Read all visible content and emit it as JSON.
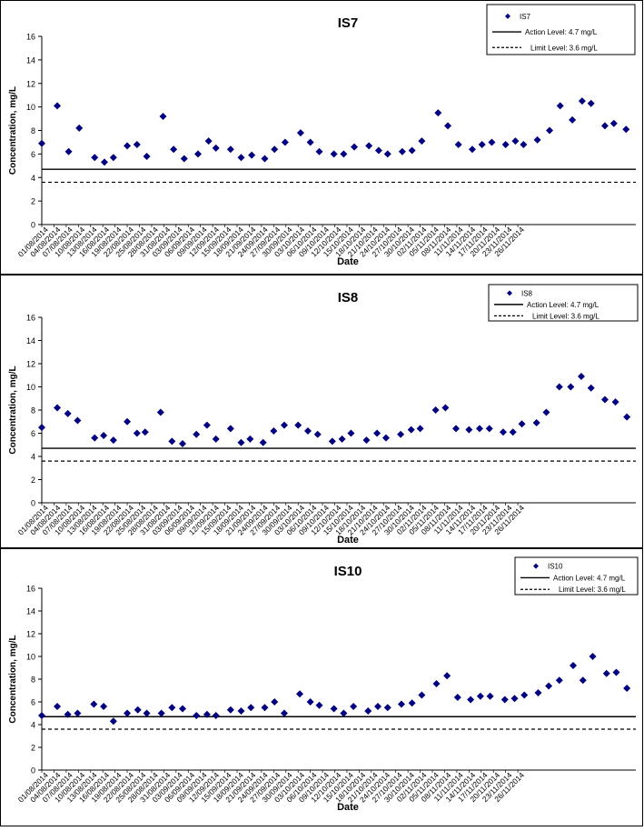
{
  "chart_data": [
    {
      "type": "scatter",
      "title": "IS7",
      "xlabel": "Date",
      "ylabel": "Concentration, mg/L",
      "ylim": [
        0,
        16
      ],
      "yticks": [
        0,
        2,
        4,
        6,
        8,
        10,
        12,
        14,
        16
      ],
      "x_tick_labels": [
        "01/08/2014",
        "04/08/2014",
        "07/08/2014",
        "10/08/2014",
        "13/08/2014",
        "16/08/2014",
        "19/08/2014",
        "22/08/2014",
        "25/08/2014",
        "28/08/2014",
        "31/08/2014",
        "03/09/2014",
        "06/09/2014",
        "09/09/2014",
        "12/09/2014",
        "15/09/2014",
        "18/09/2014",
        "21/09/2014",
        "24/09/2014",
        "27/09/2014",
        "30/09/2014",
        "03/10/2014",
        "06/10/2014",
        "09/10/2014",
        "12/10/2014",
        "15/10/2014",
        "18/10/2014",
        "21/10/2014",
        "24/10/2014",
        "27/10/2014",
        "30/10/2014",
        "02/11/2014",
        "05/11/2014",
        "08/11/2014",
        "11/11/2014",
        "14/11/2014",
        "17/11/2014",
        "20/11/2014",
        "23/11/2014",
        "26/11/2014"
      ],
      "legend_position": "top-right",
      "legend": {
        "series": "IS7",
        "action": "Action Level: 4.7 mg/L",
        "limit": "Limit Level: 3.6 mg/L"
      },
      "action_level": 4.7,
      "limit_level": 3.6,
      "series": [
        {
          "name": "IS7",
          "marker": "diamond",
          "color": "#000080",
          "points": [
            [
              0,
              6.9
            ],
            [
              3.8,
              10.1
            ],
            [
              6.6,
              6.2
            ],
            [
              9.2,
              8.2
            ],
            [
              13,
              5.7
            ],
            [
              15.4,
              5.3
            ],
            [
              17.6,
              5.7
            ],
            [
              21,
              6.7
            ],
            [
              23.4,
              6.8
            ],
            [
              25.8,
              5.8
            ],
            [
              29.8,
              9.2
            ],
            [
              32.4,
              6.4
            ],
            [
              35,
              5.6
            ],
            [
              38.4,
              6.0
            ],
            [
              41,
              7.1
            ],
            [
              42.8,
              6.5
            ],
            [
              46.4,
              6.4
            ],
            [
              49,
              5.7
            ],
            [
              51.6,
              5.9
            ],
            [
              54.8,
              5.6
            ],
            [
              57.2,
              6.4
            ],
            [
              59.8,
              7.0
            ],
            [
              63.6,
              7.8
            ],
            [
              66,
              7.0
            ],
            [
              68.2,
              6.2
            ],
            [
              71.8,
              6.0
            ],
            [
              74.2,
              6.0
            ],
            [
              76.8,
              6.6
            ],
            [
              80.4,
              6.7
            ],
            [
              82.8,
              6.3
            ],
            [
              85,
              6.0
            ],
            [
              88.6,
              6.2
            ],
            [
              91,
              6.3
            ],
            [
              93.4,
              7.1
            ],
            [
              97.4,
              9.5
            ],
            [
              99.8,
              8.4
            ],
            [
              102.4,
              6.8
            ],
            [
              105.8,
              6.4
            ],
            [
              108.2,
              6.8
            ],
            [
              110.6,
              7.0
            ],
            [
              114,
              6.8
            ],
            [
              116.4,
              7.1
            ],
            [
              118.4,
              6.8
            ],
            [
              121.8,
              7.2
            ],
            [
              124.8,
              8.0
            ],
            [
              127.4,
              10.1
            ],
            [
              130.4,
              8.9
            ],
            [
              132.8,
              10.5
            ],
            [
              135,
              10.3
            ],
            [
              138.4,
              8.4
            ],
            [
              140.6,
              8.6
            ],
            [
              143.6,
              8.1
            ]
          ]
        }
      ]
    },
    {
      "type": "scatter",
      "title": "IS8",
      "xlabel": "Date",
      "ylabel": "Concentration, mg/L",
      "ylim": [
        0,
        16
      ],
      "yticks": [
        0,
        2,
        4,
        6,
        8,
        10,
        12,
        14,
        16
      ],
      "x_tick_labels": [
        "01/08/2014",
        "04/08/2014",
        "07/08/2014",
        "10/08/2014",
        "13/08/2014",
        "16/08/2014",
        "19/08/2014",
        "22/08/2014",
        "25/08/2014",
        "28/08/2014",
        "31/08/2014",
        "03/09/2014",
        "06/09/2014",
        "09/09/2014",
        "12/09/2014",
        "15/09/2014",
        "18/09/2014",
        "21/09/2014",
        "24/09/2014",
        "27/09/2014",
        "30/09/2014",
        "03/10/2014",
        "06/10/2014",
        "09/10/2014",
        "12/10/2014",
        "15/10/2014",
        "18/10/2014",
        "21/10/2014",
        "24/10/2014",
        "27/10/2014",
        "30/10/2014",
        "02/11/2014",
        "05/11/2014",
        "08/11/2014",
        "11/11/2014",
        "14/11/2014",
        "17/11/2014",
        "20/11/2014",
        "23/11/2014",
        "26/11/2014"
      ],
      "legend_position": "top-right",
      "legend": {
        "series": "IS8",
        "action": "Action Level: 4.7 mg/L",
        "limit": "Limit Level: 3.6 mg/L"
      },
      "action_level": 4.7,
      "limit_level": 3.6,
      "series": [
        {
          "name": "IS8",
          "marker": "diamond",
          "color": "#000080",
          "points": [
            [
              0,
              6.5
            ],
            [
              3.8,
              8.2
            ],
            [
              6.4,
              7.7
            ],
            [
              8.8,
              7.1
            ],
            [
              13,
              5.6
            ],
            [
              15.2,
              5.8
            ],
            [
              17.6,
              5.4
            ],
            [
              21,
              7.0
            ],
            [
              23.4,
              6.0
            ],
            [
              25.4,
              6.1
            ],
            [
              29.2,
              7.8
            ],
            [
              32,
              5.3
            ],
            [
              34.6,
              5.1
            ],
            [
              38,
              5.9
            ],
            [
              40.6,
              6.7
            ],
            [
              42.8,
              5.5
            ],
            [
              46.4,
              6.4
            ],
            [
              49,
              5.2
            ],
            [
              51.2,
              5.5
            ],
            [
              54.4,
              5.2
            ],
            [
              57,
              6.2
            ],
            [
              59.6,
              6.7
            ],
            [
              63,
              6.7
            ],
            [
              65.4,
              6.2
            ],
            [
              67.8,
              5.9
            ],
            [
              71.4,
              5.3
            ],
            [
              73.8,
              5.5
            ],
            [
              76,
              6.0
            ],
            [
              79.8,
              5.4
            ],
            [
              82.4,
              6.0
            ],
            [
              84.6,
              5.6
            ],
            [
              88.2,
              5.9
            ],
            [
              90.8,
              6.3
            ],
            [
              93,
              6.4
            ],
            [
              96.8,
              8.0
            ],
            [
              99.2,
              8.2
            ],
            [
              101.8,
              6.4
            ],
            [
              105,
              6.3
            ],
            [
              107.6,
              6.4
            ],
            [
              110,
              6.4
            ],
            [
              113.4,
              6.1
            ],
            [
              115.8,
              6.1
            ],
            [
              118,
              6.8
            ],
            [
              121.6,
              6.9
            ],
            [
              124,
              7.8
            ],
            [
              127.2,
              10.0
            ],
            [
              130,
              10.0
            ],
            [
              132.6,
              10.9
            ],
            [
              135,
              9.9
            ],
            [
              138.4,
              8.9
            ],
            [
              141,
              8.7
            ],
            [
              143.8,
              7.4
            ]
          ]
        }
      ]
    },
    {
      "type": "scatter",
      "title": "IS10",
      "xlabel": "Date",
      "ylabel": "Concentration, mg/L",
      "ylim": [
        0,
        16
      ],
      "yticks": [
        0,
        2,
        4,
        6,
        8,
        10,
        12,
        14,
        16
      ],
      "x_tick_labels": [
        "01/08/2014",
        "04/08/2014",
        "07/08/2014",
        "10/08/2014",
        "13/08/2014",
        "16/08/2014",
        "19/08/2014",
        "22/08/2014",
        "25/08/2014",
        "28/08/2014",
        "31/08/2014",
        "03/09/2014",
        "06/09/2014",
        "09/09/2014",
        "12/09/2014",
        "15/09/2014",
        "18/09/2014",
        "21/09/2014",
        "24/09/2014",
        "27/09/2014",
        "30/09/2014",
        "03/10/2014",
        "06/10/2014",
        "09/10/2014",
        "12/10/2014",
        "15/10/2014",
        "18/10/2014",
        "21/10/2014",
        "24/10/2014",
        "27/10/2014",
        "30/10/2014",
        "02/11/2014",
        "05/11/2014",
        "08/11/2014",
        "11/11/2014",
        "14/11/2014",
        "17/11/2014",
        "20/11/2014",
        "23/11/2014",
        "26/11/2014"
      ],
      "legend_position": "top-right",
      "legend": {
        "series": "IS10",
        "action": "Action Level: 4.7 mg/L",
        "limit": "Limit Level: 3.6 mg/L"
      },
      "action_level": 4.7,
      "limit_level": 3.6,
      "series": [
        {
          "name": "IS10",
          "marker": "diamond",
          "color": "#000080",
          "points": [
            [
              0,
              4.8
            ],
            [
              3.8,
              5.6
            ],
            [
              6.4,
              4.9
            ],
            [
              8.8,
              5.0
            ],
            [
              12.8,
              5.8
            ],
            [
              15.2,
              5.6
            ],
            [
              17.6,
              4.3
            ],
            [
              21,
              5.0
            ],
            [
              23.6,
              5.3
            ],
            [
              25.8,
              5.0
            ],
            [
              29.4,
              5.0
            ],
            [
              32,
              5.5
            ],
            [
              34.6,
              5.4
            ],
            [
              38,
              4.8
            ],
            [
              40.6,
              4.9
            ],
            [
              42.8,
              4.8
            ],
            [
              46.4,
              5.3
            ],
            [
              49,
              5.2
            ],
            [
              51.4,
              5.5
            ],
            [
              54.8,
              5.5
            ],
            [
              57.2,
              6.0
            ],
            [
              59.6,
              5.0
            ],
            [
              63.4,
              6.7
            ],
            [
              66,
              6.0
            ],
            [
              68.2,
              5.7
            ],
            [
              71.8,
              5.4
            ],
            [
              74.2,
              5.0
            ],
            [
              76.6,
              5.6
            ],
            [
              80.2,
              5.2
            ],
            [
              82.6,
              5.6
            ],
            [
              85,
              5.5
            ],
            [
              88.4,
              5.8
            ],
            [
              91,
              5.9
            ],
            [
              93.4,
              6.6
            ],
            [
              97,
              7.6
            ],
            [
              99.6,
              8.3
            ],
            [
              102.2,
              6.4
            ],
            [
              105.4,
              6.2
            ],
            [
              107.8,
              6.5
            ],
            [
              110.2,
              6.5
            ],
            [
              113.8,
              6.2
            ],
            [
              116.2,
              6.3
            ],
            [
              118.6,
              6.6
            ],
            [
              122,
              6.8
            ],
            [
              124.6,
              7.4
            ],
            [
              127.2,
              7.9
            ],
            [
              130.6,
              9.2
            ],
            [
              133,
              7.9
            ],
            [
              135.4,
              10.0
            ],
            [
              138.8,
              8.5
            ],
            [
              141.2,
              8.6
            ],
            [
              143.8,
              7.2
            ]
          ]
        }
      ]
    }
  ]
}
